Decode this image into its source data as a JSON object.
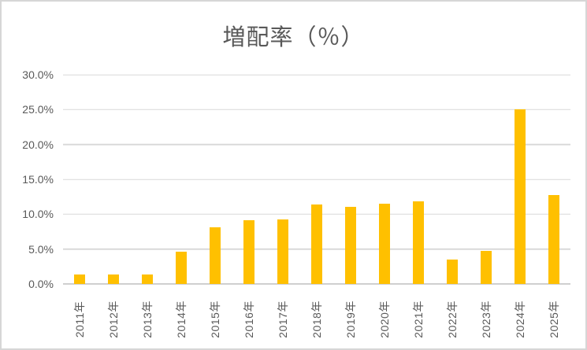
{
  "chart_data": {
    "type": "bar",
    "title": "増配率（％）",
    "categories": [
      "2011年",
      "2012年",
      "2013年",
      "2014年",
      "2015年",
      "2016年",
      "2017年",
      "2018年",
      "2019年",
      "2020年",
      "2021年",
      "2022年",
      "2023年",
      "2024年",
      "2025年"
    ],
    "values": [
      1.3,
      1.3,
      1.3,
      4.6,
      8.1,
      9.1,
      9.3,
      11.4,
      11.0,
      11.5,
      11.8,
      3.5,
      4.7,
      25.0,
      12.8
    ],
    "xlabel": "",
    "ylabel": "",
    "ylim": [
      0,
      30
    ],
    "y_tick_step": 5,
    "y_tick_labels": [
      "0.0%",
      "5.0%",
      "10.0%",
      "15.0%",
      "20.0%",
      "25.0%",
      "30.0%"
    ],
    "legend_position": "none",
    "grid": "horizontal"
  },
  "colors": {
    "bar": "#FFC000",
    "gridline": "#D9D9D9",
    "axis_text": "#595959",
    "title_text": "#595959",
    "frame_border": "#D6D6D6",
    "background": "#FFFFFF"
  }
}
